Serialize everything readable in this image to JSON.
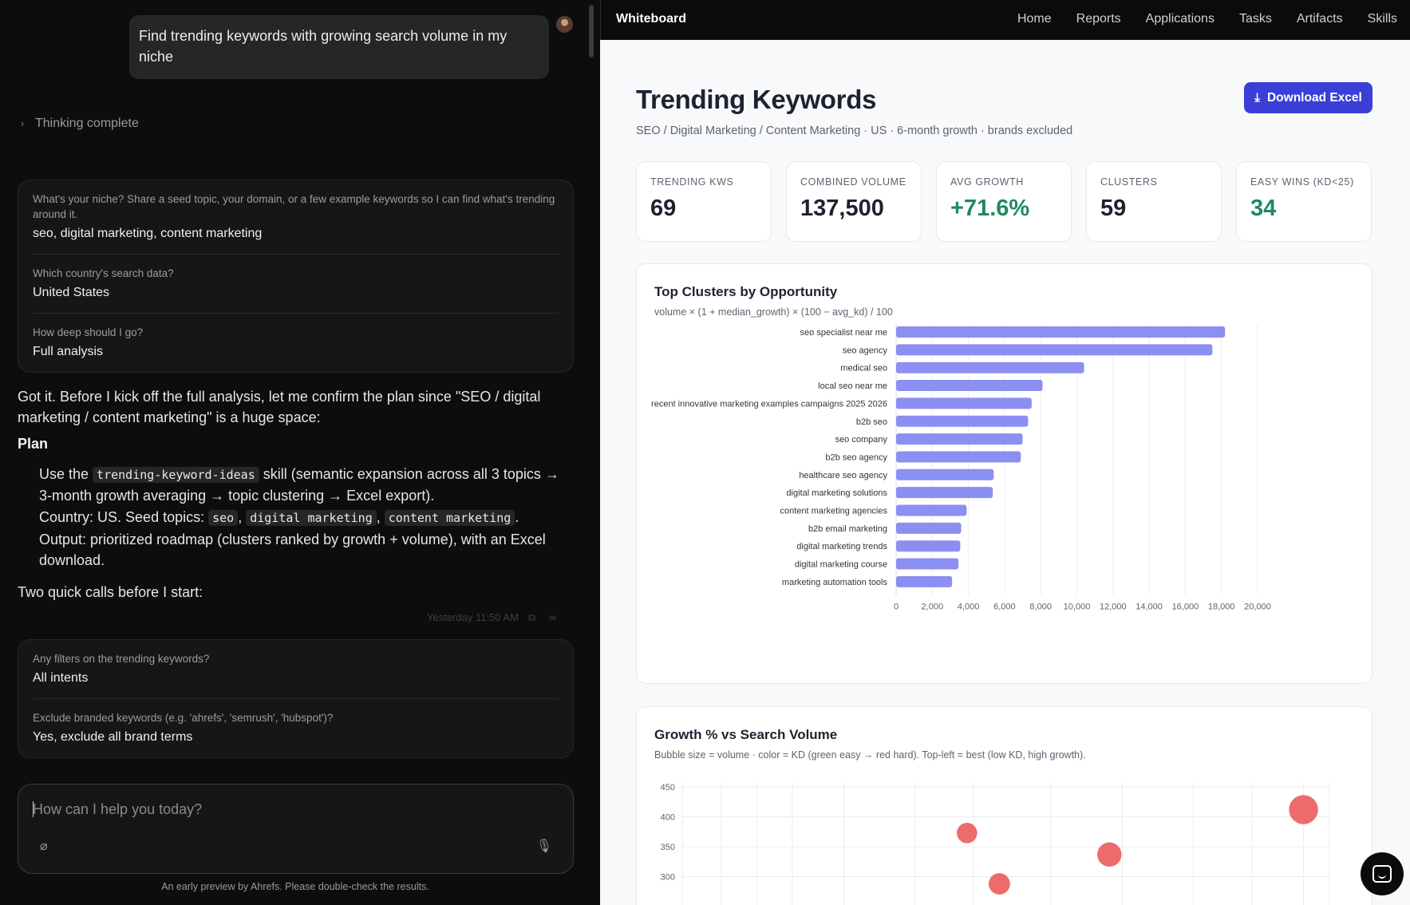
{
  "chat": {
    "user_message": "Find trending keywords with growing search volume in my niche",
    "thinking_label": "Thinking complete",
    "qa1": [
      {
        "q": "What's your niche? Share a seed topic, your domain, or a few example keywords so I can find what's trending around it.",
        "a": "seo, digital marketing, content marketing"
      },
      {
        "q": "Which country's search data?",
        "a": "United States"
      },
      {
        "q": "How deep should I go?",
        "a": "Full analysis"
      }
    ],
    "intro": "Got it. Before I kick off the full analysis, let me confirm the plan since \"SEO / digital marketing / content marketing\" is a huge space:",
    "plan_heading": "Plan",
    "plan": {
      "l1_pre": "Use the ",
      "l1_code": "trending-keyword-ideas",
      "l1_post": " skill (semantic expansion across all 3 topics → 3-month growth averaging → topic clustering → Excel export).",
      "l2_pre": "Country: US. Seed topics: ",
      "l2_c1": "seo",
      "l2_sep1": ", ",
      "l2_c2": "digital marketing",
      "l2_sep2": ", ",
      "l2_c3": "content marketing",
      "l2_end": ".",
      "l3": "Output: prioritized roadmap (clusters ranked by growth + volume), with an Excel download."
    },
    "quick_calls": "Two quick calls before I start:",
    "timestamp": "Yesterday 11:50 AM",
    "qa2": [
      {
        "q": "Any filters on the trending keywords?",
        "a": "All intents"
      },
      {
        "q": "Exclude branded keywords (e.g. 'ahrefs', 'semrush', 'hubspot')?",
        "a": "Yes, exclude all brand terms"
      }
    ],
    "composer_placeholder": "How can I help you today?",
    "footer": "An early preview by Ahrefs. Please double-check the results."
  },
  "board": {
    "brand": "Whiteboard",
    "nav": [
      "Home",
      "Reports",
      "Applications",
      "Tasks",
      "Artifacts",
      "Skills"
    ],
    "title": "Trending Keywords",
    "subtitle": "SEO / Digital Marketing / Content Marketing · US · 6-month growth · brands excluded",
    "download_label": "Download Excel",
    "kpis": [
      {
        "label": "TRENDING KWS",
        "value": "69",
        "accent": false
      },
      {
        "label": "COMBINED VOLUME",
        "value": "137,500",
        "accent": false
      },
      {
        "label": "AVG GROWTH",
        "value": "+71.6%",
        "accent": true
      },
      {
        "label": "CLUSTERS",
        "value": "59",
        "accent": false
      },
      {
        "label": "EASY WINS (KD<25)",
        "value": "34",
        "accent": true
      }
    ],
    "colors": {
      "bar": "#8b8ff2",
      "accent_green": "#1f8a5b",
      "button": "#3b3fd8",
      "bubble": "#ec5b5b"
    }
  },
  "chart_data": [
    {
      "type": "bar",
      "orientation": "horizontal",
      "title": "Top Clusters by Opportunity",
      "subtitle": "volume × (1 + median_growth) × (100 − avg_kd) / 100",
      "categories": [
        "seo specialist near me",
        "seo agency",
        "medical seo",
        "local seo near me",
        "recent innovative marketing examples campaigns 2025 2026",
        "b2b seo",
        "seo company",
        "b2b seo agency",
        "healthcare seo agency",
        "digital marketing solutions",
        "content marketing agencies",
        "b2b email marketing",
        "digital marketing trends",
        "digital marketing course",
        "marketing automation tools"
      ],
      "values": [
        18200,
        17500,
        10400,
        8100,
        7500,
        7300,
        7000,
        6900,
        5400,
        5350,
        3900,
        3600,
        3550,
        3450,
        3100
      ],
      "xlim": [
        0,
        20000
      ],
      "xticks": [
        0,
        2000,
        4000,
        6000,
        8000,
        10000,
        12000,
        14000,
        16000,
        18000,
        20000
      ],
      "xtick_labels": [
        "0",
        "2,000",
        "4,000",
        "6,000",
        "8,000",
        "10,000",
        "12,000",
        "14,000",
        "16,000",
        "18,000",
        "20,000"
      ],
      "grid": true
    },
    {
      "type": "scatter",
      "title": "Growth % vs Search Volume",
      "subtitle": "Bubble size = volume · color = KD (green easy → red hard). Top-left = best (low KD, high growth).",
      "yticks": [
        450,
        400,
        350,
        300
      ],
      "ylim": [
        290,
        450
      ],
      "points": [
        {
          "x": 0.44,
          "y": 373,
          "size": 0.4
        },
        {
          "x": 0.66,
          "y": 337,
          "size": 0.6
        },
        {
          "x": 0.49,
          "y": 288,
          "size": 0.45
        },
        {
          "x": 0.96,
          "y": 412,
          "size": 0.85
        }
      ],
      "grid": true
    }
  ]
}
